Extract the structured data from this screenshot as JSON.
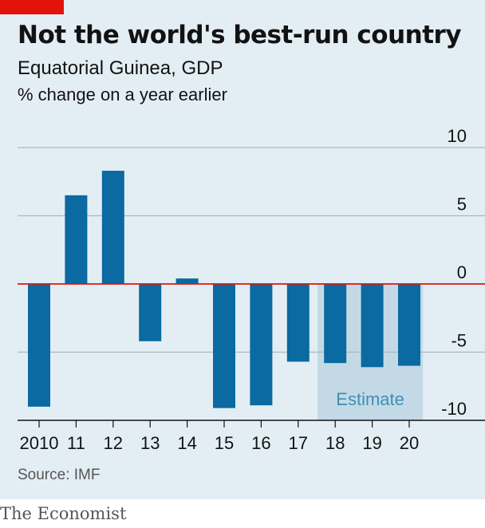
{
  "header": {
    "title": "Not the world's best-run country",
    "subtitle": "Equatorial Guinea, GDP",
    "units": "% change on a year earlier"
  },
  "footer": {
    "source": "Source: IMF",
    "brand": "The Economist"
  },
  "colors": {
    "bar": "#0a6aa1",
    "zero_line": "#e3120b",
    "grid": "#a9b8c2",
    "estimate_shade": "#c3dae6",
    "background": "#e3eef4",
    "brand_tag": "#e3120b"
  },
  "chart_data": {
    "type": "bar",
    "categories": [
      "2010",
      "11",
      "12",
      "13",
      "14",
      "15",
      "16",
      "17",
      "18",
      "19",
      "20"
    ],
    "values": [
      -9.0,
      6.5,
      8.3,
      -4.2,
      0.4,
      -9.1,
      -8.9,
      -5.7,
      -5.8,
      -6.1,
      -6.0
    ],
    "ylim": [
      -10,
      10
    ],
    "yticks": [
      10,
      5,
      0,
      -5,
      -10
    ],
    "grid": true,
    "estimate": {
      "label": "Estimate",
      "categories": [
        "18",
        "19",
        "20"
      ]
    }
  }
}
